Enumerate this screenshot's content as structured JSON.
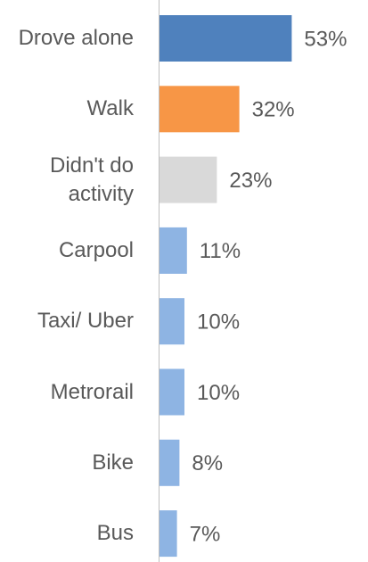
{
  "chart_data": {
    "type": "bar",
    "orientation": "horizontal",
    "categories": [
      "Drove alone",
      "Walk",
      "Didn't do activity",
      "Carpool",
      "Taxi/ Uber",
      "Metrorail",
      "Bike",
      "Bus"
    ],
    "values": [
      53,
      32,
      23,
      11,
      10,
      10,
      8,
      7
    ],
    "value_labels": [
      "53%",
      "32%",
      "23%",
      "11%",
      "10%",
      "10%",
      "8%",
      "7%"
    ],
    "colors": [
      "#4f81bd",
      "#f79646",
      "#d9d9d9",
      "#8eb4e3",
      "#8eb4e3",
      "#8eb4e3",
      "#8eb4e3",
      "#8eb4e3"
    ]
  }
}
